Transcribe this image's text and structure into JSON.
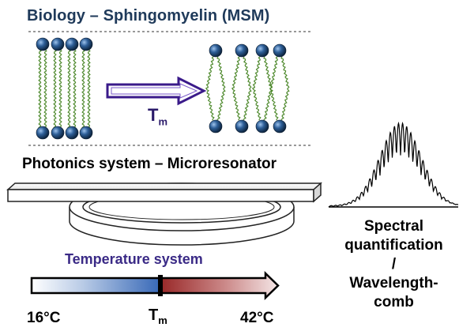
{
  "biology": {
    "title": "Biology – Sphingomyelin (MSM)",
    "transition_label": "T",
    "transition_sub": "m"
  },
  "photonics": {
    "title": "Photonics system – Microresonator"
  },
  "spectrum": {
    "lines": [
      "Spectral",
      "quantification",
      "/",
      "Wavelength-",
      "comb"
    ]
  },
  "temperature": {
    "title": "Temperature system",
    "low": "16°C",
    "high": "42°C",
    "tm": "T",
    "tm_sub": "m"
  },
  "colors": {
    "lipid_head": "#1e4a78",
    "lipid_tail": "#4f8a2e",
    "arrow": "#3a1a8a",
    "cold": "#3a6ab8",
    "hot": "#9a2a2a"
  }
}
